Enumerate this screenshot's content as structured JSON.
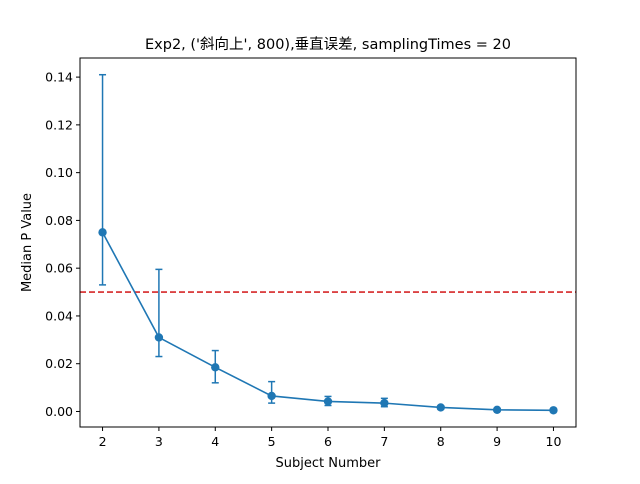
{
  "chart_data": {
    "type": "line",
    "title": "Exp2, ('斜向上', 800),垂直误差, samplingTimes = 20",
    "xlabel": "Subject Number",
    "ylabel": "Median P Value",
    "x": [
      2,
      3,
      4,
      5,
      6,
      7,
      8,
      9,
      10
    ],
    "x_ticks": [
      "2",
      "3",
      "4",
      "5",
      "6",
      "7",
      "8",
      "9",
      "10"
    ],
    "y_ticks": [
      "0.00",
      "0.02",
      "0.04",
      "0.06",
      "0.08",
      "0.10",
      "0.12",
      "0.14"
    ],
    "xlim": [
      1.6,
      10.4
    ],
    "ylim": [
      -0.0065,
      0.148
    ],
    "series": [
      {
        "values": [
          0.075,
          0.031,
          0.0185,
          0.0065,
          0.0042,
          0.0035,
          0.0017,
          0.0007,
          0.0005
        ],
        "err_low": [
          0.053,
          0.023,
          0.012,
          0.0035,
          0.0025,
          0.002,
          0.001,
          0.0004,
          0.0003
        ],
        "err_high": [
          0.141,
          0.0595,
          0.0255,
          0.0125,
          0.0063,
          0.0055,
          0.0023,
          0.001,
          0.0008
        ],
        "color": "#1f77b4"
      }
    ],
    "reference_line": {
      "y": 0.05,
      "color": "#d62728",
      "style": "dashed"
    },
    "grid": false,
    "legend": "none"
  }
}
